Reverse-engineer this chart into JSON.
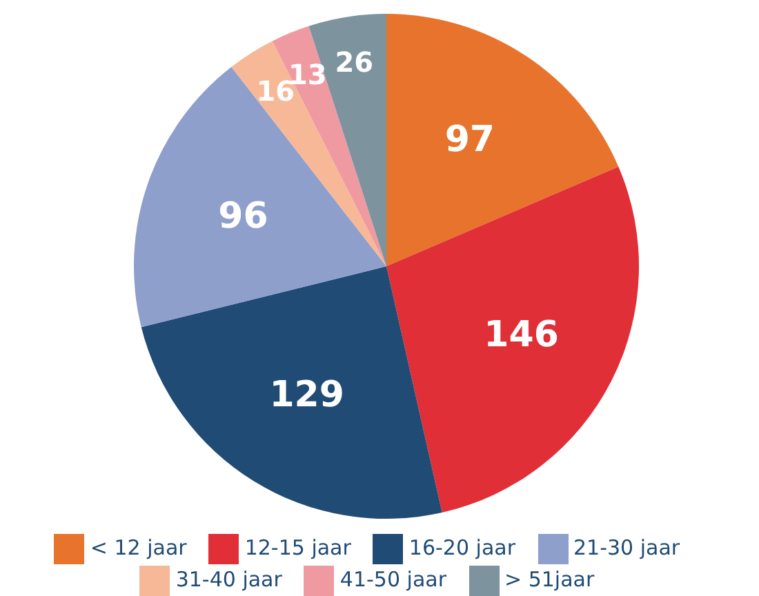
{
  "chart_data": {
    "type": "pie",
    "categories": [
      "< 12 jaar",
      "12-15 jaar",
      "16-20 jaar",
      "21-30 jaar",
      "31-40 jaar",
      "41-50 jaar",
      "> 51jaar"
    ],
    "values": [
      97,
      146,
      129,
      96,
      16,
      13,
      26
    ],
    "colors": [
      "#e8732c",
      "#e02f36",
      "#1f4b75",
      "#8f9fcb",
      "#f6b897",
      "#ef9aa1",
      "#7d939d"
    ],
    "data_labels": true,
    "legend": "bottom"
  }
}
